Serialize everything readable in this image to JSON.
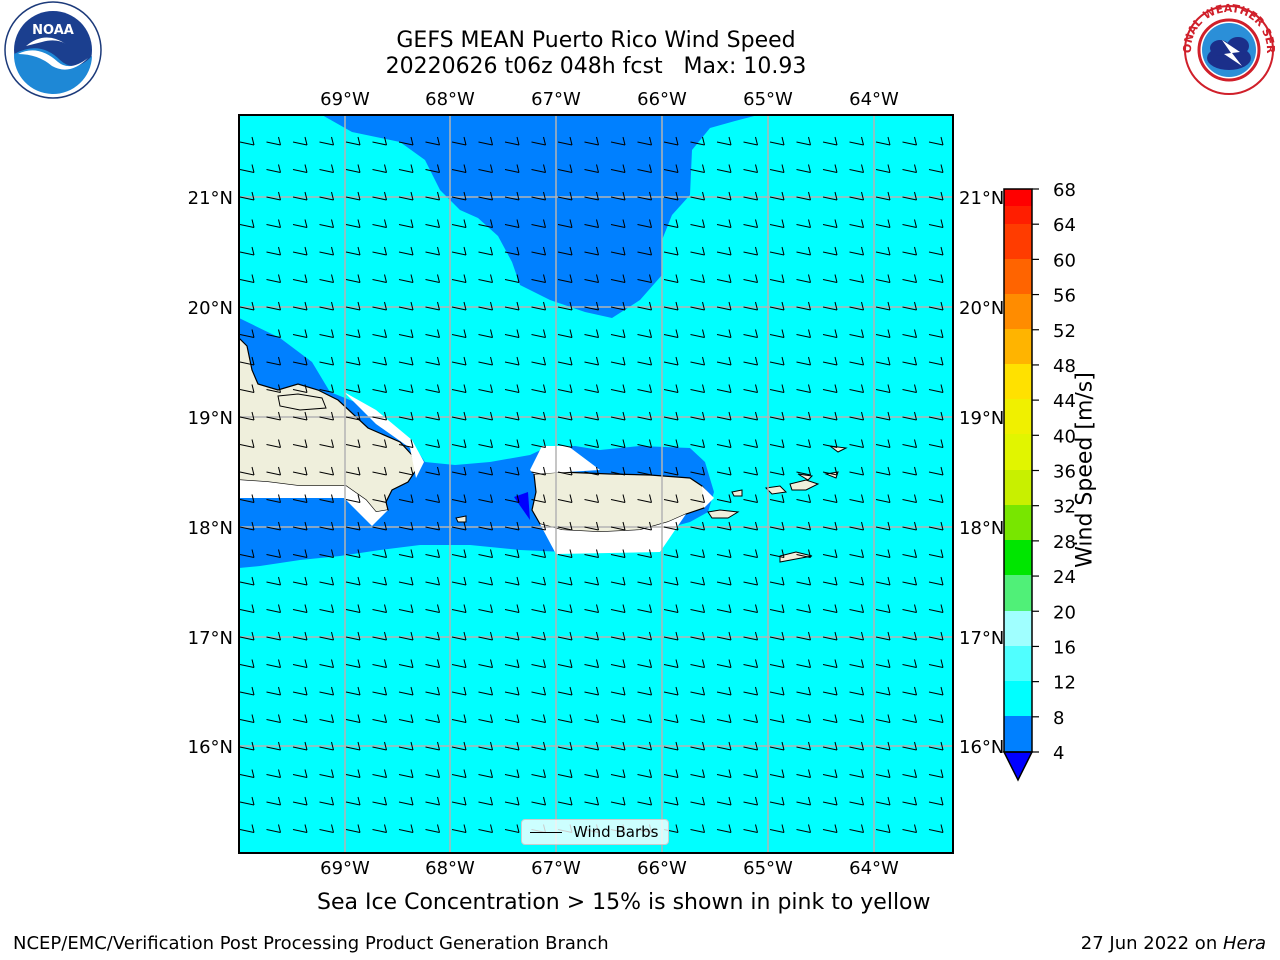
{
  "header": {
    "title_line1": "GEFS MEAN Puerto Rico Wind Speed",
    "title_line2": "20220626 t06z 048h fcst   Max: 10.93"
  },
  "logos": {
    "left": "noaa-logo",
    "right": "national-weather-service-logo",
    "right_text": "NATIONAL WEATHER SERVICE"
  },
  "map": {
    "lon_labels": [
      "69°W",
      "68°W",
      "67°W",
      "66°W",
      "65°W",
      "64°W"
    ],
    "lat_labels": [
      "21°N",
      "20°N",
      "19°N",
      "18°N",
      "17°N",
      "16°N"
    ],
    "ocean_color": "#00ffff",
    "slow_wind_color": "#0080ff",
    "slowest_wind_color": "#0000ff",
    "land_color": "#efefdc",
    "legend_label": "Wind Barbs"
  },
  "colorbar": {
    "title": "Wind Speed [m/s]",
    "ticks": [
      "68",
      "64",
      "60",
      "56",
      "52",
      "48",
      "44",
      "40",
      "36",
      "32",
      "28",
      "24",
      "20",
      "16",
      "12",
      "8",
      "4"
    ],
    "colors": [
      "#ff0000",
      "#ff2800",
      "#ff5000",
      "#ff7800",
      "#ff9b00",
      "#ffbe00",
      "#ffe600",
      "#fff000",
      "#e6f500",
      "#c8f000",
      "#a0e600",
      "#50d200",
      "#00e600",
      "#00dc4b",
      "#50f078",
      "#a0ffdc",
      "#78ffff",
      "#3cffff",
      "#00ffff",
      "#0080ff",
      "#0000ff"
    ]
  },
  "note": "Sea Ice Concentration > 15% is shown in pink to yellow",
  "footer": {
    "left": "NCEP/EMC/Verification Post Processing Product Generation Branch",
    "right_date": "27 Jun 2022 on ",
    "right_machine": "Hera"
  }
}
